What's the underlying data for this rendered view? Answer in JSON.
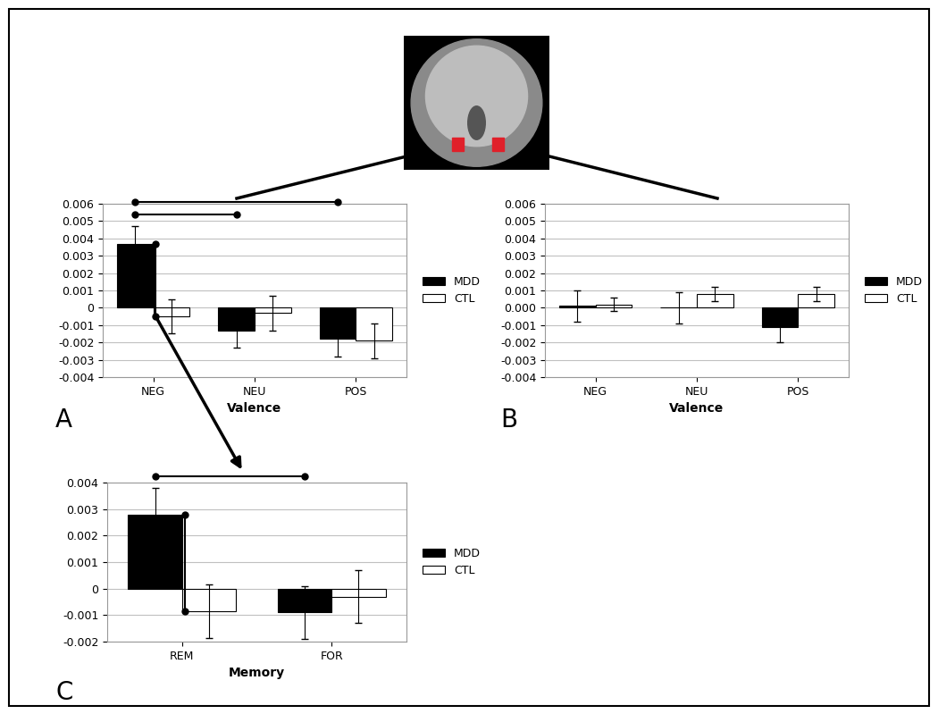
{
  "chart_data": [
    {
      "type": "bar",
      "label": "A",
      "x_label": "Valence",
      "categories": [
        "NEG",
        "NEU",
        "POS"
      ],
      "series": [
        {
          "name": "MDD",
          "color": "#000000",
          "values": [
            0.0037,
            -0.0013,
            -0.0018
          ],
          "errors": [
            0.001,
            0.001,
            0.001
          ]
        },
        {
          "name": "CTL",
          "color": "#ffffff",
          "values": [
            -0.0005,
            -0.0003,
            -0.0019
          ],
          "errors": [
            0.001,
            0.001,
            0.001
          ]
        }
      ],
      "ylim": [
        -0.004,
        0.006
      ],
      "yticks": [
        -0.004,
        -0.003,
        -0.002,
        -0.001,
        0,
        0.001,
        0.002,
        0.003,
        0.004,
        0.005,
        0.006
      ],
      "grid": true,
      "legend": "center left",
      "significant_pairs": [
        [
          [
            "MDD",
            "NEG"
          ],
          [
            "CTL",
            "NEG"
          ]
        ],
        [
          [
            "MDD",
            "NEG"
          ],
          [
            "MDD",
            "NEU"
          ]
        ],
        [
          [
            "MDD",
            "NEG"
          ],
          [
            "MDD",
            "POS"
          ]
        ]
      ]
    },
    {
      "type": "bar",
      "label": "B",
      "x_label": "Valence",
      "categories": [
        "NEG",
        "NEU",
        "POS"
      ],
      "series": [
        {
          "name": "MDD",
          "color": "#000000",
          "values": [
            0.0001,
            0.0,
            -0.0011
          ],
          "errors": [
            0.0009,
            0.0009,
            0.0009
          ]
        },
        {
          "name": "CTL",
          "color": "#ffffff",
          "values": [
            0.0002,
            0.0008,
            0.0008
          ],
          "errors": [
            0.0004,
            0.0004,
            0.0004
          ]
        }
      ],
      "ylim": [
        -0.004,
        0.006
      ],
      "yticks": [
        -0.004,
        -0.003,
        -0.002,
        -0.001,
        {
          "value": 0,
          "label": "0.000"
        },
        0.001,
        0.002,
        0.003,
        0.004,
        0.005,
        0.006
      ],
      "grid": true,
      "legend": "center left",
      "significant_pairs": []
    },
    {
      "type": "bar",
      "label": "C",
      "x_label": "Memory",
      "categories": [
        "REM",
        "FOR"
      ],
      "series": [
        {
          "name": "MDD",
          "color": "#000000",
          "values": [
            0.0028,
            -0.0009
          ],
          "errors": [
            0.001,
            0.001
          ]
        },
        {
          "name": "CTL",
          "color": "#ffffff",
          "values": [
            -0.00085,
            -0.0003
          ],
          "errors": [
            0.001,
            0.001
          ]
        }
      ],
      "ylim": [
        -0.002,
        0.004
      ],
      "yticks": [
        -0.002,
        -0.001,
        0,
        0.001,
        0.002,
        0.003,
        0.004
      ],
      "grid": true,
      "legend": "center left",
      "significant_pairs": [
        [
          [
            "MDD",
            "REM"
          ],
          [
            "CTL",
            "REM"
          ]
        ],
        [
          [
            "MDD",
            "REM"
          ],
          [
            "MDD",
            "FOR"
          ]
        ]
      ]
    }
  ]
}
